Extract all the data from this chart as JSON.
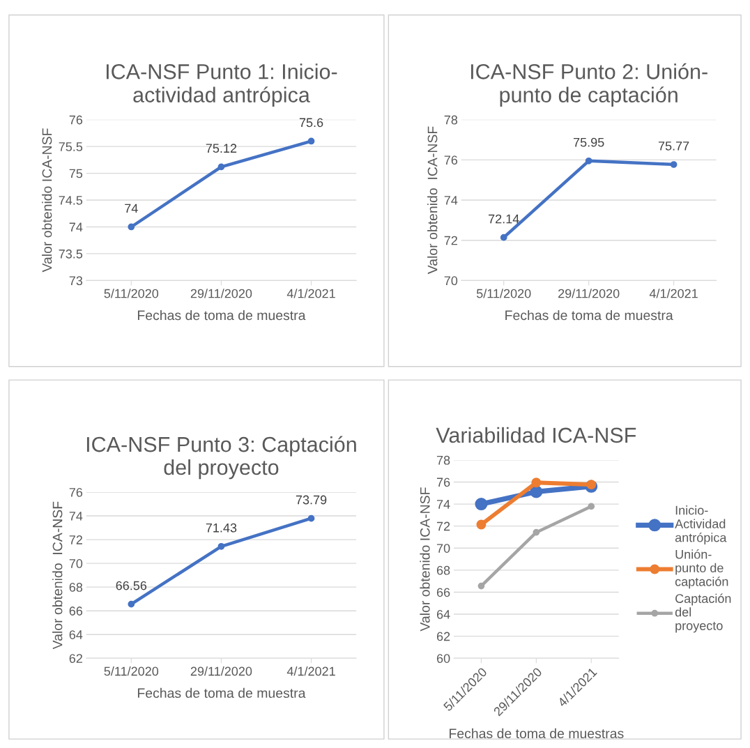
{
  "chart_data": [
    {
      "type": "line",
      "title": "ICA-NSF Punto 1: Inicio-\nactividad antrópica",
      "xlabel": "Fechas de toma de muestra",
      "ylabel": "Valor obtenido ICA-NSF",
      "categories": [
        "5/11/2020",
        "29/11/2020",
        "4/1/2021"
      ],
      "series": [
        {
          "color": "#4472c4",
          "values": [
            74,
            75.12,
            75.6
          ]
        }
      ],
      "ylim": [
        73,
        76
      ],
      "yticks": [
        73,
        73.5,
        74,
        74.5,
        75,
        75.5,
        76
      ],
      "grid": "y",
      "marker": "circle",
      "data_labels": true,
      "legend": false
    },
    {
      "type": "line",
      "title": "ICA-NSF Punto 2: Unión-\npunto de captación",
      "xlabel": "Fechas de toma de muestra",
      "ylabel": "Valor obtenido  ICA-NSF",
      "categories": [
        "5/11/2020",
        "29/11/2020",
        "4/1/2021"
      ],
      "series": [
        {
          "color": "#4472c4",
          "values": [
            72.14,
            75.95,
            75.77
          ]
        }
      ],
      "ylim": [
        70,
        78
      ],
      "yticks": [
        70,
        72,
        74,
        76,
        78
      ],
      "grid": "y",
      "marker": "circle",
      "data_labels": true,
      "legend": false
    },
    {
      "type": "line",
      "title": "ICA-NSF Punto 3: Captación\ndel proyecto",
      "xlabel": "Fechas de toma de muestra",
      "ylabel": "Valor obtenido  ICA-NSF",
      "categories": [
        "5/11/2020",
        "29/11/2020",
        "4/1/2021"
      ],
      "series": [
        {
          "color": "#4472c4",
          "values": [
            66.56,
            71.43,
            73.79
          ]
        }
      ],
      "ylim": [
        62,
        76
      ],
      "yticks": [
        62,
        64,
        66,
        68,
        70,
        72,
        74,
        76
      ],
      "grid": "y",
      "marker": "circle",
      "data_labels": true,
      "legend": false
    },
    {
      "type": "line",
      "title": "Variabilidad ICA-NSF",
      "xlabel": "Fechas de toma de muestras",
      "ylabel": "Valor obtenido ICA-NSF",
      "categories": [
        "5/11/2020",
        "29/11/2020",
        "4/1/2021"
      ],
      "series": [
        {
          "name": "Inicio-\nActividad\nantrópica",
          "color": "#4472c4",
          "values": [
            74,
            75.12,
            75.6
          ]
        },
        {
          "name": "Unión-\npunto de\ncaptación",
          "color": "#ed7d31",
          "values": [
            72.14,
            75.95,
            75.77
          ]
        },
        {
          "name": "Captación\ndel\nproyecto",
          "color": "#a5a5a5",
          "values": [
            66.56,
            71.43,
            73.79
          ]
        }
      ],
      "ylim": [
        60,
        78
      ],
      "yticks": [
        60,
        62,
        64,
        66,
        68,
        70,
        72,
        74,
        76,
        78
      ],
      "grid": "y",
      "marker": "circle",
      "legend": "right"
    }
  ]
}
